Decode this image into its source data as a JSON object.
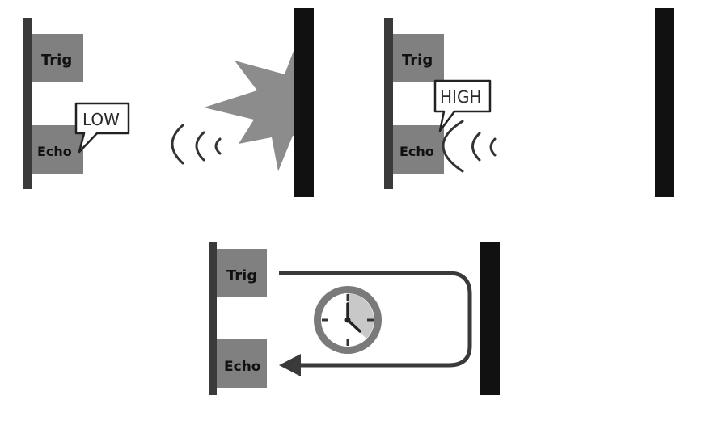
{
  "panel_1": {
    "trig_label": "Trig",
    "echo_label": "Echo",
    "echo_state": "LOW"
  },
  "panel_3": {
    "trig_label": "Trig",
    "echo_label": "Echo",
    "echo_state": "HIGH"
  },
  "panel_5": {
    "trig_label": "Trig",
    "echo_label": "Echo",
    "icon": "clock-icon"
  },
  "colors": {
    "sensor_block": "#808080",
    "sensor_bar": "#3a3a3a",
    "obstacle": "#111111",
    "wave": "#333333",
    "burst": "#8c8c8c",
    "clock_ring": "#7a7a7a",
    "clock_shade": "#c8c8c8"
  }
}
